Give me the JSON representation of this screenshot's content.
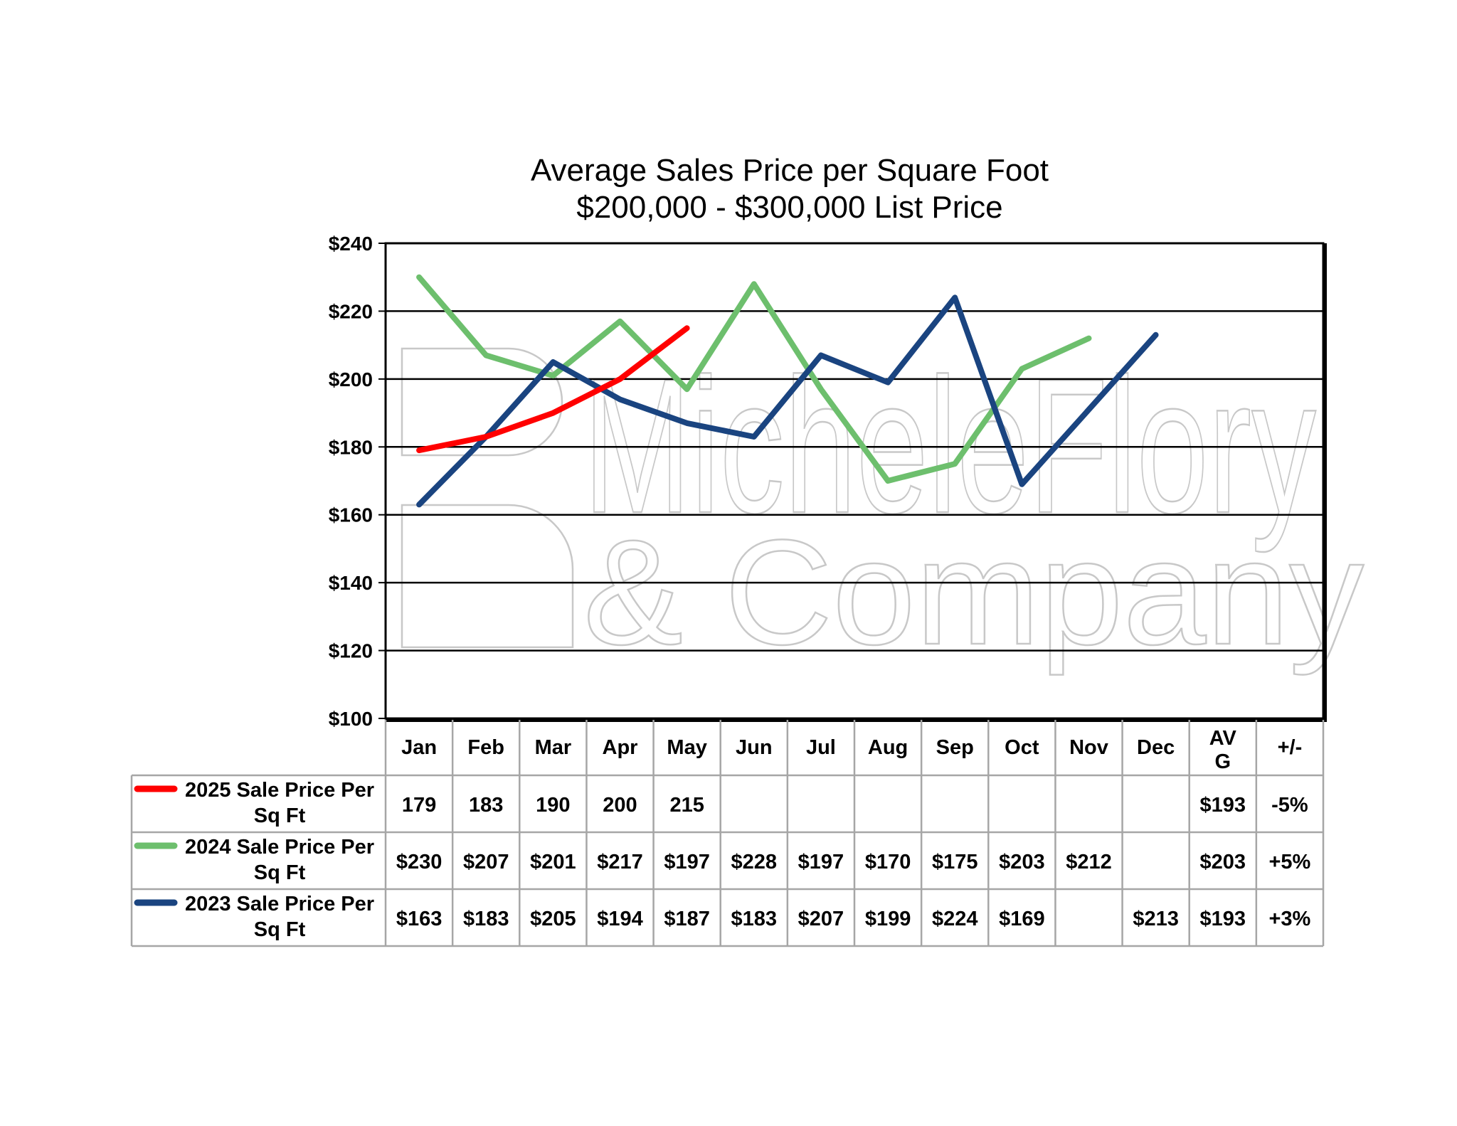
{
  "chart_data": {
    "type": "line",
    "title": "Average Sales Price per Square Foot",
    "subtitle": "$200,000 - $300,000 List Price",
    "ylim": [
      100,
      240
    ],
    "y_ticks": [
      "$100",
      "$120",
      "$140",
      "$160",
      "$180",
      "$200",
      "$220",
      "$240"
    ],
    "y_tick_values": [
      100,
      120,
      140,
      160,
      180,
      200,
      220,
      240
    ],
    "grid": true,
    "legend_placement": "bottom table",
    "categories": [
      "Jan",
      "Feb",
      "Mar",
      "Apr",
      "May",
      "Jun",
      "Jul",
      "Aug",
      "Sep",
      "Oct",
      "Nov",
      "Dec"
    ],
    "extra_headers": [
      "AV\nG",
      "+/-"
    ],
    "series": [
      {
        "name": "2025 Sale Price Per Sq Ft",
        "color": "#ff0000",
        "values": [
          179,
          183,
          190,
          200,
          215,
          null,
          null,
          null,
          null,
          null,
          null,
          null
        ],
        "labels": [
          "179",
          "183",
          "190",
          "200",
          "215",
          "",
          "",
          "",
          "",
          "",
          "",
          ""
        ],
        "avg": "$193",
        "change": "-5%"
      },
      {
        "name": "2024 Sale Price Per Sq Ft",
        "color": "#6dbf6d",
        "values": [
          230,
          207,
          201,
          217,
          197,
          228,
          197,
          170,
          175,
          203,
          212,
          null
        ],
        "labels": [
          "$230",
          "$207",
          "$201",
          "$217",
          "$197",
          "$228",
          "$197",
          "$170",
          "$175",
          "$203",
          "$212",
          ""
        ],
        "avg": "$203",
        "change": "+5%"
      },
      {
        "name": "2023 Sale Price Per Sq Ft",
        "color": "#1a4480",
        "values": [
          163,
          183,
          205,
          194,
          187,
          183,
          207,
          199,
          224,
          169,
          null,
          213
        ],
        "labels": [
          "$163",
          "$183",
          "$205",
          "$194",
          "$187",
          "$183",
          "$207",
          "$199",
          "$224",
          "$169",
          "",
          "$213"
        ],
        "avg": "$193",
        "change": "+3%"
      }
    ],
    "watermark": [
      "MicheleFlory",
      "& Company"
    ]
  }
}
